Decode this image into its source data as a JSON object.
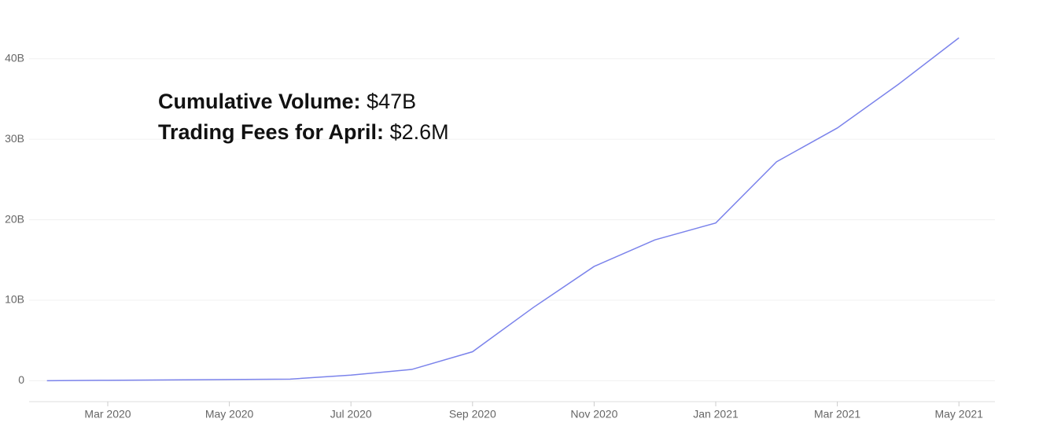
{
  "chart_data": {
    "type": "line",
    "annotations": [
      {
        "label": "Cumulative Volume:",
        "value": "$47B"
      },
      {
        "label": "Trading Fees for April:",
        "value": "$2.6M"
      }
    ],
    "x": [
      "2020-02",
      "2020-03",
      "2020-04",
      "2020-05",
      "2020-06",
      "2020-07",
      "2020-08",
      "2020-09",
      "2020-10",
      "2020-11",
      "2020-12",
      "2021-01",
      "2021-02",
      "2021-03",
      "2021-04",
      "2021-05"
    ],
    "series": [
      {
        "name": "Cumulative Volume",
        "color": "#7b83eb",
        "values": [
          0,
          0.05,
          0.1,
          0.15,
          0.2,
          0.7,
          1.4,
          3.6,
          9.1,
          14.2,
          17.5,
          19.6,
          27.2,
          31.4,
          36.8,
          42.6
        ]
      }
    ],
    "xticks": [
      {
        "value": "2020-03",
        "label": "Mar 2020"
      },
      {
        "value": "2020-05",
        "label": "May 2020"
      },
      {
        "value": "2020-07",
        "label": "Jul 2020"
      },
      {
        "value": "2020-09",
        "label": "Sep 2020"
      },
      {
        "value": "2020-11",
        "label": "Nov 2020"
      },
      {
        "value": "2021-01",
        "label": "Jan 2021"
      },
      {
        "value": "2021-03",
        "label": "Mar 2021"
      },
      {
        "value": "2021-05",
        "label": "May 2021"
      }
    ],
    "ylim": [
      -2.6,
      47.3
    ],
    "yticks": [
      0,
      {
        "value": 10,
        "label": "10B"
      },
      {
        "value": 20,
        "label": "20B"
      },
      {
        "value": 30,
        "label": "30B"
      },
      {
        "value": 40,
        "label": "40B"
      }
    ],
    "grid": true
  }
}
